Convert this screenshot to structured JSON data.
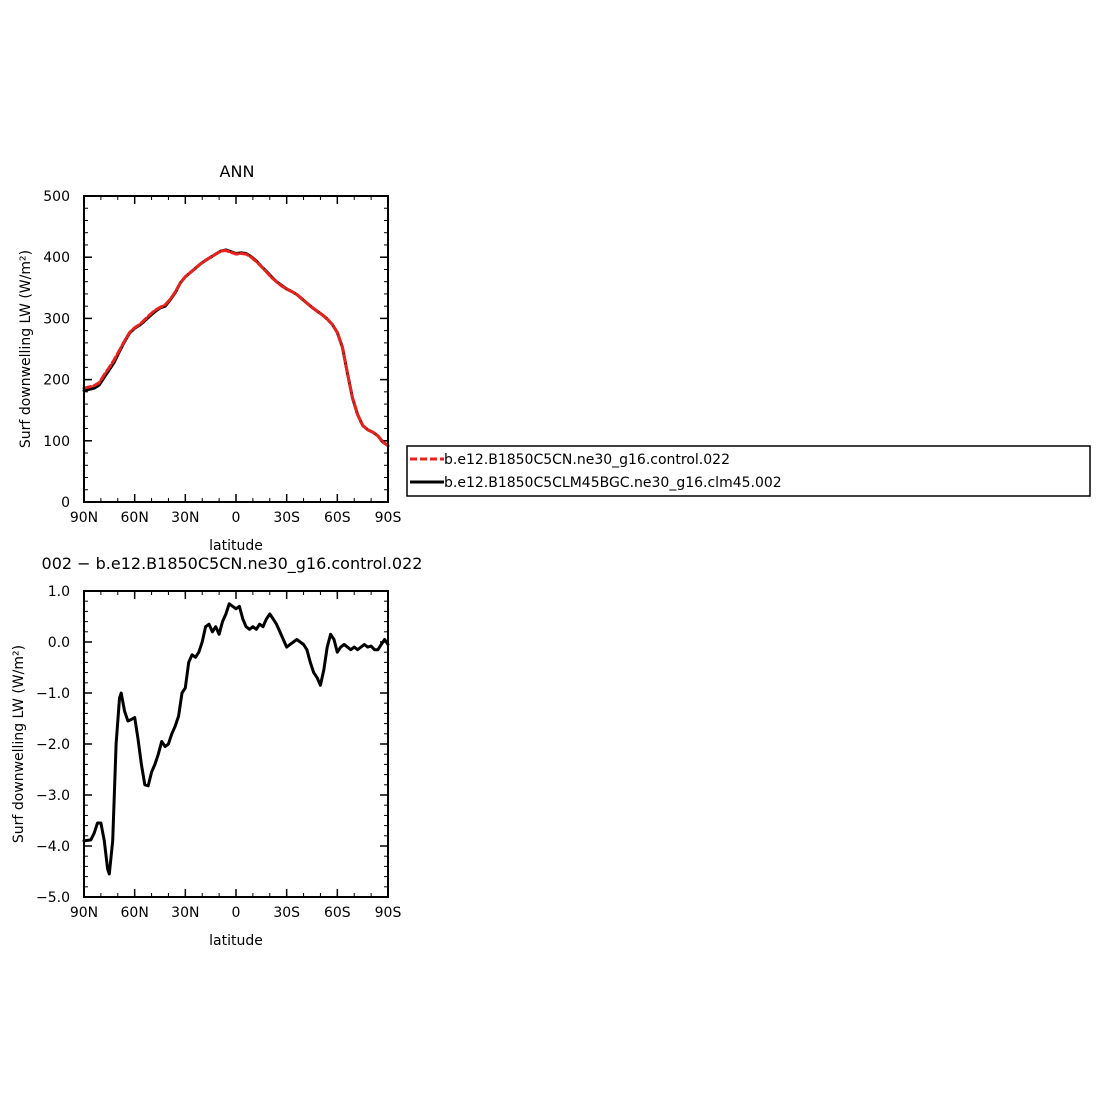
{
  "chart_data": [
    {
      "type": "line",
      "title": "ANN",
      "xlabel": "latitude",
      "ylabel": "Surf downwelling LW (W/m²)",
      "xlim": [
        90,
        -90
      ],
      "ylim": [
        0,
        500
      ],
      "xticks": [
        90,
        60,
        30,
        0,
        -30,
        -60,
        -90
      ],
      "xtick_labels": [
        "90N",
        "60N",
        "30N",
        "0",
        "30S",
        "60S",
        "90S"
      ],
      "yticks": [
        0,
        100,
        200,
        300,
        400,
        500
      ],
      "ytick_labels": [
        "0",
        "100",
        "200",
        "300",
        "400",
        "500"
      ],
      "legend_position": "right of plot",
      "series": [
        {
          "name": "b.e12.B1850C5CN.ne30_g16.control.022",
          "color": "#e8221c",
          "dash": "dashed",
          "points": [
            [
              90,
              186
            ],
            [
              87,
              188
            ],
            [
              84,
              190
            ],
            [
              81,
              195
            ],
            [
              78,
              208
            ],
            [
              75,
              220
            ],
            [
              72,
              233
            ],
            [
              69,
              248
            ],
            [
              66,
              263
            ],
            [
              63,
              277
            ],
            [
              60,
              285
            ],
            [
              57,
              290
            ],
            [
              54,
              298
            ],
            [
              51,
              306
            ],
            [
              48,
              313
            ],
            [
              45,
              318
            ],
            [
              42,
              322
            ],
            [
              39,
              331
            ],
            [
              36,
              343
            ],
            [
              33,
              358
            ],
            [
              30,
              368
            ],
            [
              27,
              375
            ],
            [
              24,
              382
            ],
            [
              21,
              389
            ],
            [
              18,
              395
            ],
            [
              15,
              400
            ],
            [
              12,
              405
            ],
            [
              9,
              410
            ],
            [
              6,
              411
            ],
            [
              3,
              408
            ],
            [
              0,
              405
            ],
            [
              -3,
              406
            ],
            [
              -6,
              405
            ],
            [
              -9,
              400
            ],
            [
              -12,
              393
            ],
            [
              -15,
              385
            ],
            [
              -18,
              376
            ],
            [
              -21,
              367
            ],
            [
              -24,
              360
            ],
            [
              -27,
              353
            ],
            [
              -30,
              348
            ],
            [
              -33,
              344
            ],
            [
              -36,
              339
            ],
            [
              -39,
              332
            ],
            [
              -42,
              325
            ],
            [
              -45,
              318
            ],
            [
              -48,
              312
            ],
            [
              -51,
              306
            ],
            [
              -54,
              299
            ],
            [
              -57,
              290
            ],
            [
              -60,
              277
            ],
            [
              -63,
              253
            ],
            [
              -66,
              210
            ],
            [
              -69,
              170
            ],
            [
              -72,
              143
            ],
            [
              -75,
              125
            ],
            [
              -78,
              118
            ],
            [
              -81,
              114
            ],
            [
              -84,
              108
            ],
            [
              -87,
              98
            ],
            [
              -90,
              92
            ]
          ]
        },
        {
          "name": "b.e12.B1850C5CLM45BGC.ne30_g16.clm45.002",
          "color": "#000000",
          "dash": "solid",
          "points": [
            [
              90,
              182
            ],
            [
              87,
              184
            ],
            [
              84,
              186
            ],
            [
              81,
              191
            ],
            [
              78,
              204
            ],
            [
              75,
              216
            ],
            [
              72,
              229
            ],
            [
              69,
              246
            ],
            [
              66,
              262
            ],
            [
              63,
              276
            ],
            [
              60,
              284
            ],
            [
              57,
              289
            ],
            [
              54,
              296
            ],
            [
              51,
              304
            ],
            [
              48,
              311
            ],
            [
              45,
              317
            ],
            [
              42,
              320
            ],
            [
              39,
              330
            ],
            [
              36,
              342
            ],
            [
              33,
              358
            ],
            [
              30,
              368
            ],
            [
              27,
              375
            ],
            [
              24,
              382
            ],
            [
              21,
              389
            ],
            [
              18,
              395
            ],
            [
              15,
              400
            ],
            [
              12,
              405
            ],
            [
              9,
              410
            ],
            [
              6,
              412
            ],
            [
              3,
              409
            ],
            [
              0,
              406
            ],
            [
              -3,
              407
            ],
            [
              -6,
              406
            ],
            [
              -9,
              401
            ],
            [
              -12,
              394
            ],
            [
              -15,
              385
            ],
            [
              -18,
              377
            ],
            [
              -21,
              368
            ],
            [
              -24,
              360
            ],
            [
              -27,
              354
            ],
            [
              -30,
              348
            ],
            [
              -33,
              344
            ],
            [
              -36,
              339
            ],
            [
              -39,
              332
            ],
            [
              -42,
              325
            ],
            [
              -45,
              318
            ],
            [
              -48,
              312
            ],
            [
              -51,
              306
            ],
            [
              -54,
              299
            ],
            [
              -57,
              290
            ],
            [
              -60,
              277
            ],
            [
              -63,
              253
            ],
            [
              -66,
              210
            ],
            [
              -69,
              170
            ],
            [
              -72,
              143
            ],
            [
              -75,
              125
            ],
            [
              -78,
              118
            ],
            [
              -81,
              114
            ],
            [
              -84,
              108
            ],
            [
              -87,
              98
            ],
            [
              -90,
              92
            ]
          ]
        }
      ]
    },
    {
      "type": "line",
      "title": "002 − b.e12.B1850C5CN.ne30_g16.control.022",
      "xlabel": "latitude",
      "ylabel": "Surf downwelling LW (W/m²)",
      "xlim": [
        90,
        -90
      ],
      "ylim": [
        -5.0,
        1.0
      ],
      "xticks": [
        90,
        60,
        30,
        0,
        -30,
        -60,
        -90
      ],
      "xtick_labels": [
        "90N",
        "60N",
        "30N",
        "0",
        "30S",
        "60S",
        "90S"
      ],
      "yticks": [
        1.0,
        0.0,
        -1.0,
        -2.0,
        -3.0,
        -4.0,
        -5.0
      ],
      "ytick_labels": [
        "1.0",
        "0.0",
        "−1.0",
        "−2.0",
        "−3.0",
        "−4.0",
        "−5.0"
      ],
      "series": [
        {
          "color": "#000000",
          "dash": "solid",
          "points": [
            [
              90,
              -3.9
            ],
            [
              86,
              -3.88
            ],
            [
              84,
              -3.75
            ],
            [
              82,
              -3.55
            ],
            [
              80,
              -3.55
            ],
            [
              78,
              -3.9
            ],
            [
              76,
              -4.45
            ],
            [
              75,
              -4.55
            ],
            [
              73,
              -3.9
            ],
            [
              71,
              -2.0
            ],
            [
              69,
              -1.1
            ],
            [
              68,
              -1.0
            ],
            [
              66,
              -1.35
            ],
            [
              64,
              -1.55
            ],
            [
              62,
              -1.52
            ],
            [
              60,
              -1.48
            ],
            [
              58,
              -1.9
            ],
            [
              56,
              -2.4
            ],
            [
              54,
              -2.8
            ],
            [
              52,
              -2.82
            ],
            [
              50,
              -2.55
            ],
            [
              48,
              -2.4
            ],
            [
              46,
              -2.2
            ],
            [
              44,
              -1.95
            ],
            [
              42,
              -2.05
            ],
            [
              40,
              -2.0
            ],
            [
              38,
              -1.8
            ],
            [
              36,
              -1.65
            ],
            [
              34,
              -1.45
            ],
            [
              32,
              -1.0
            ],
            [
              30,
              -0.9
            ],
            [
              28,
              -0.4
            ],
            [
              26,
              -0.25
            ],
            [
              24,
              -0.3
            ],
            [
              22,
              -0.2
            ],
            [
              20,
              0.0
            ],
            [
              18,
              0.3
            ],
            [
              16,
              0.35
            ],
            [
              14,
              0.2
            ],
            [
              12,
              0.3
            ],
            [
              10,
              0.15
            ],
            [
              8,
              0.4
            ],
            [
              6,
              0.55
            ],
            [
              4,
              0.75
            ],
            [
              2,
              0.7
            ],
            [
              0,
              0.65
            ],
            [
              -2,
              0.7
            ],
            [
              -4,
              0.45
            ],
            [
              -6,
              0.3
            ],
            [
              -8,
              0.25
            ],
            [
              -10,
              0.3
            ],
            [
              -12,
              0.25
            ],
            [
              -14,
              0.35
            ],
            [
              -16,
              0.3
            ],
            [
              -18,
              0.45
            ],
            [
              -20,
              0.55
            ],
            [
              -22,
              0.45
            ],
            [
              -24,
              0.35
            ],
            [
              -26,
              0.2
            ],
            [
              -28,
              0.05
            ],
            [
              -30,
              -0.1
            ],
            [
              -32,
              -0.05
            ],
            [
              -34,
              0.0
            ],
            [
              -36,
              0.05
            ],
            [
              -38,
              0.0
            ],
            [
              -40,
              -0.05
            ],
            [
              -42,
              -0.15
            ],
            [
              -44,
              -0.4
            ],
            [
              -46,
              -0.6
            ],
            [
              -48,
              -0.7
            ],
            [
              -50,
              -0.85
            ],
            [
              -52,
              -0.55
            ],
            [
              -54,
              -0.1
            ],
            [
              -56,
              0.15
            ],
            [
              -58,
              0.05
            ],
            [
              -60,
              -0.2
            ],
            [
              -62,
              -0.1
            ],
            [
              -64,
              -0.05
            ],
            [
              -66,
              -0.1
            ],
            [
              -68,
              -0.15
            ],
            [
              -70,
              -0.1
            ],
            [
              -72,
              -0.15
            ],
            [
              -74,
              -0.1
            ],
            [
              -76,
              -0.05
            ],
            [
              -78,
              -0.1
            ],
            [
              -80,
              -0.08
            ],
            [
              -82,
              -0.15
            ],
            [
              -84,
              -0.15
            ],
            [
              -86,
              -0.05
            ],
            [
              -88,
              0.05
            ],
            [
              -90,
              -0.05
            ]
          ]
        }
      ]
    }
  ]
}
